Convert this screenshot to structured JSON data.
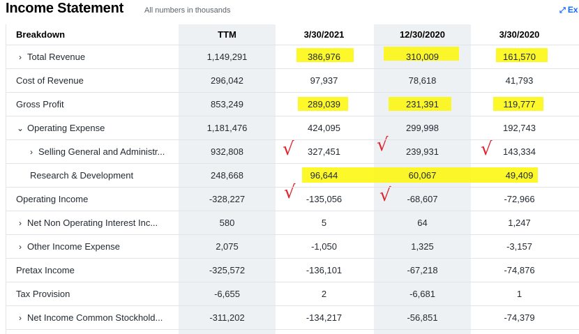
{
  "header": {
    "title": "Income Statement",
    "subtitle": "All numbers in thousands",
    "expand_label": "Ex",
    "expand_icon": "expand-icon"
  },
  "columns": [
    "Breakdown",
    "TTM",
    "3/30/2021",
    "12/30/2020",
    "3/30/2020"
  ],
  "rows": [
    {
      "label": "Total Revenue",
      "expandable": true,
      "indent": 0,
      "values": [
        "1,149,291",
        "386,976",
        "310,009",
        "161,570"
      ]
    },
    {
      "label": "Cost of Revenue",
      "expandable": false,
      "indent": 0,
      "values": [
        "296,042",
        "97,937",
        "78,618",
        "41,793"
      ]
    },
    {
      "label": "Gross Profit",
      "expandable": false,
      "indent": 0,
      "values": [
        "853,249",
        "289,039",
        "231,391",
        "119,777"
      ]
    },
    {
      "label": "Operating Expense",
      "expandable": true,
      "expanded": true,
      "indent": 0,
      "values": [
        "1,181,476",
        "424,095",
        "299,998",
        "192,743"
      ]
    },
    {
      "label": "Selling General and Administr...",
      "expandable": true,
      "indent": 1,
      "values": [
        "932,808",
        "327,451",
        "239,931",
        "143,334"
      ]
    },
    {
      "label": "Research & Development",
      "expandable": false,
      "indent": 1,
      "values": [
        "248,668",
        "96,644",
        "60,067",
        "49,409"
      ]
    },
    {
      "label": "Operating Income",
      "expandable": false,
      "indent": 0,
      "values": [
        "-328,227",
        "-135,056",
        "-68,607",
        "-72,966"
      ]
    },
    {
      "label": "Net Non Operating Interest Inc...",
      "expandable": true,
      "indent": 0,
      "values": [
        "580",
        "5",
        "64",
        "1,247"
      ]
    },
    {
      "label": "Other Income Expense",
      "expandable": true,
      "indent": 0,
      "values": [
        "2,075",
        "-1,050",
        "1,325",
        "-3,157"
      ]
    },
    {
      "label": "Pretax Income",
      "expandable": false,
      "indent": 0,
      "values": [
        "-325,572",
        "-136,101",
        "-67,218",
        "-74,876"
      ]
    },
    {
      "label": "Tax Provision",
      "expandable": false,
      "indent": 0,
      "values": [
        "-6,655",
        "2",
        "-6,681",
        "1"
      ]
    },
    {
      "label": "Net Income Common Stockhold...",
      "expandable": true,
      "indent": 0,
      "values": [
        "-311,202",
        "-134,217",
        "-56,851",
        "-74,379"
      ]
    }
  ],
  "annotations": {
    "highlight_color": "#fbf705",
    "check_color": "#e1232e",
    "check_glyph": "√"
  }
}
